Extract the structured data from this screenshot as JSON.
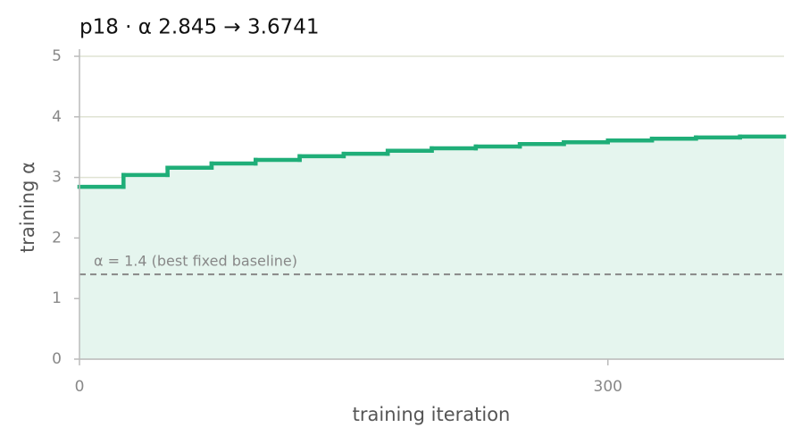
{
  "chart_data": {
    "type": "step",
    "title": "p18   ·   α 2.845 → 3.6741",
    "x_label": "training iteration",
    "y_label": "training α",
    "x": [
      0,
      25,
      50,
      75,
      100,
      125,
      150,
      175,
      200,
      225,
      250,
      275,
      300,
      325,
      350,
      375
    ],
    "values": [
      2.845,
      3.04,
      3.16,
      3.23,
      3.29,
      3.35,
      3.39,
      3.44,
      3.48,
      3.51,
      3.55,
      3.58,
      3.61,
      3.64,
      3.66,
      3.6741
    ],
    "color": "#1fae78",
    "fill_color": "#e5f5ee",
    "xlim": [
      0,
      400
    ],
    "ylim": [
      0,
      5
    ],
    "xticks": [
      0,
      300
    ],
    "yticks": [
      0,
      1,
      2,
      3,
      4,
      5
    ],
    "grid": true,
    "baseline": {
      "value": 1.4,
      "label": "α = 1.4 (best fixed baseline)"
    }
  }
}
